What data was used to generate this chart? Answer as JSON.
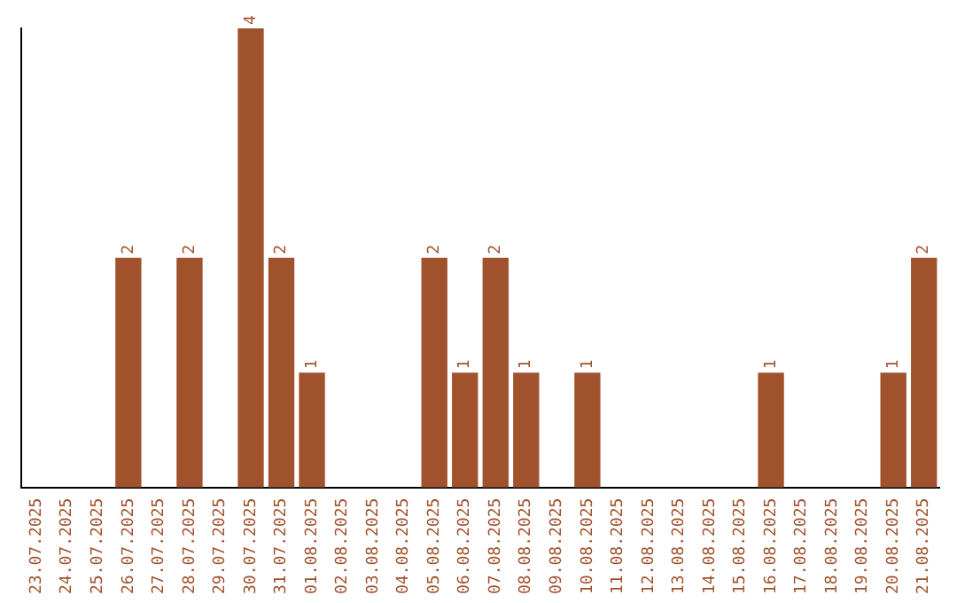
{
  "chart_data": {
    "type": "bar",
    "categories": [
      "23.07.2025",
      "24.07.2025",
      "25.07.2025",
      "26.07.2025",
      "27.07.2025",
      "28.07.2025",
      "29.07.2025",
      "30.07.2025",
      "31.07.2025",
      "01.08.2025",
      "02.08.2025",
      "03.08.2025",
      "04.08.2025",
      "05.08.2025",
      "06.08.2025",
      "07.08.2025",
      "08.08.2025",
      "09.08.2025",
      "10.08.2025",
      "11.08.2025",
      "12.08.2025",
      "13.08.2025",
      "14.08.2025",
      "15.08.2025",
      "16.08.2025",
      "17.08.2025",
      "18.08.2025",
      "19.08.2025",
      "20.08.2025",
      "21.08.2025"
    ],
    "values": [
      0,
      0,
      0,
      2,
      0,
      2,
      0,
      4,
      2,
      1,
      0,
      0,
      0,
      2,
      1,
      2,
      1,
      0,
      1,
      0,
      0,
      0,
      0,
      0,
      1,
      0,
      0,
      0,
      1,
      2
    ],
    "value_labels": [
      null,
      null,
      null,
      "2",
      null,
      "2",
      null,
      "4",
      "2",
      "1",
      null,
      null,
      null,
      "2",
      "1",
      "2",
      "1",
      null,
      "1",
      null,
      null,
      null,
      null,
      null,
      "1",
      null,
      null,
      null,
      "1",
      "2"
    ],
    "color": "#a0522d",
    "grid": false,
    "legend": false,
    "tick_labels": "x"
  }
}
